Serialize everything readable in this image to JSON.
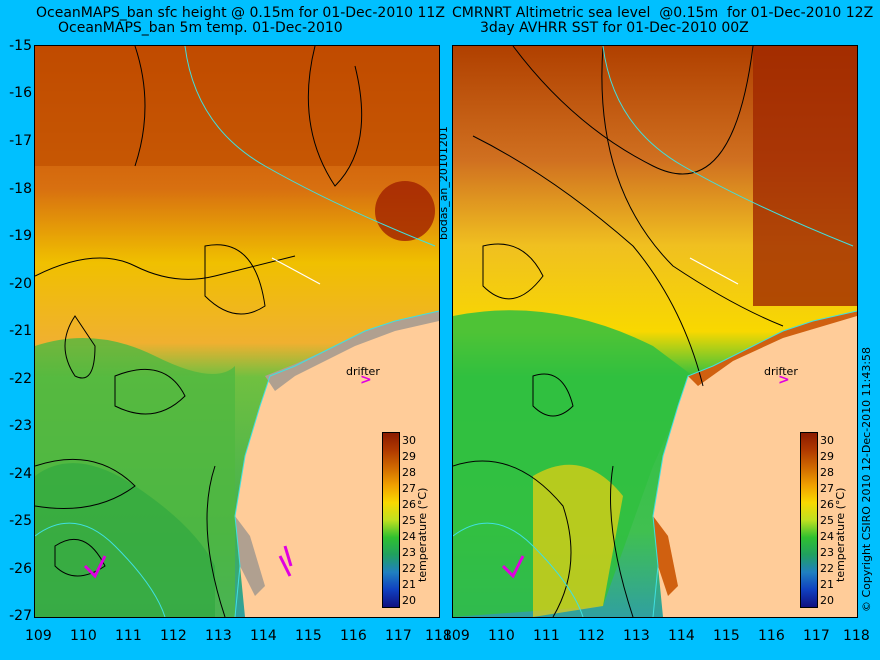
{
  "left_panel": {
    "title_line1": "OceanMAPS_ban sfc height @ 0.15m for 01-Dec-2010 11Z",
    "title_line2": "OceanMAPS_ban 5m temp. 01-Dec-2010"
  },
  "right_panel": {
    "title_line1": "CMRNRT Altimetric sea level  @0.15m  for 01-Dec-2010 12Z",
    "title_line2": "3day AVHRR SST for 01-Dec-2010 00Z"
  },
  "y_axis_ticks": [
    "-15",
    "-16",
    "-17",
    "-18",
    "-19",
    "-20",
    "-21",
    "-22",
    "-23",
    "-24",
    "-25",
    "-26",
    "-27"
  ],
  "x_axis_ticks_left": [
    "109",
    "110",
    "111",
    "112",
    "113",
    "114",
    "115",
    "116",
    "117",
    "118"
  ],
  "x_axis_ticks_right": [
    "109",
    "110",
    "111",
    "112",
    "113",
    "114",
    "115",
    "116",
    "117",
    "118"
  ],
  "colorbar": {
    "title": "temperature (°C)",
    "ticks": [
      "30",
      "29",
      "28",
      "27",
      "26",
      "25",
      "24",
      "23",
      "22",
      "21",
      "20"
    ],
    "colors": [
      "#8b1a00",
      "#b03a00",
      "#d06a00",
      "#f0a000",
      "#f8d800",
      "#c0e020",
      "#30c030",
      "#20a060",
      "#2080c0",
      "#1040c0",
      "#101080"
    ]
  },
  "drifter_label": "drifter",
  "drifter_mark": ">",
  "middle_side_text": "bodas_an_20101201",
  "right_side_text": "© Copyright CSIRO 2010   12-Dec-2010 11:43:58",
  "map": {
    "land_color": "#ffcc99",
    "contour_color": "#000000",
    "coast_color": "#40e0e0"
  }
}
